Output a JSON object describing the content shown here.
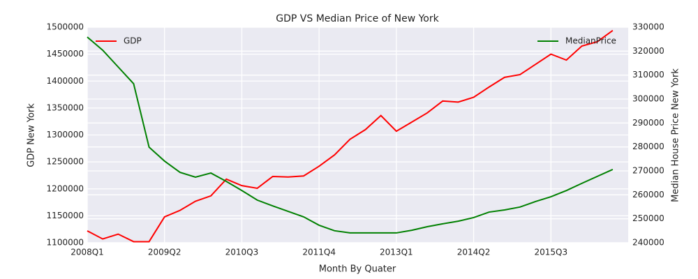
{
  "chart_data": {
    "type": "line",
    "title": "GDP VS Median Price of New York",
    "xlabel": "Month By Quater",
    "ylabel": "GDP New York",
    "y2label": "Median House Price New York",
    "categories": [
      "2008Q1",
      null,
      null,
      null,
      null,
      "2009Q2",
      null,
      null,
      null,
      null,
      "2010Q3",
      null,
      null,
      null,
      null,
      "2011Q4",
      null,
      null,
      null,
      null,
      "2013Q1",
      null,
      null,
      null,
      null,
      "2014Q2",
      null,
      null,
      null,
      null,
      "2015Q3",
      null,
      null,
      null,
      null
    ],
    "xlim": [
      0,
      35
    ],
    "ylim": [
      1100000,
      1500000
    ],
    "yticks": [
      1100000,
      1150000,
      1200000,
      1250000,
      1300000,
      1350000,
      1400000,
      1450000,
      1500000
    ],
    "y2lim": [
      240000,
      330000
    ],
    "y2ticks": [
      240000,
      250000,
      260000,
      270000,
      280000,
      290000,
      300000,
      310000,
      320000,
      330000
    ],
    "grid": true,
    "series": [
      {
        "name": "GDP",
        "color": "#ff0000",
        "legend": "upper left",
        "values": [
          1122000,
          1107000,
          1116000,
          1102000,
          1102000,
          1148000,
          1160000,
          1177000,
          1187000,
          1218000,
          1206000,
          1201000,
          1223000,
          1222000,
          1224000,
          1242000,
          1263000,
          1292000,
          1310000,
          1336000,
          1307000,
          1324000,
          1341000,
          1363000,
          1361000,
          1370000,
          1389000,
          1407000,
          1412000,
          1431000,
          1450000,
          1439000,
          1465000,
          1473000,
          1494000
        ]
      },
      {
        "name": "MedianPrice",
        "color": "#008000",
        "axis": "y2",
        "legend": "upper right",
        "values": [
          325900,
          320400,
          313400,
          306400,
          279900,
          274100,
          269400,
          267400,
          269100,
          265600,
          261800,
          257800,
          255400,
          253100,
          250800,
          247300,
          245000,
          244100,
          244100,
          244100,
          244100,
          245200,
          246700,
          247900,
          249000,
          250500,
          252800,
          253700,
          254900,
          257200,
          259200,
          261800,
          264800,
          267700,
          270600
        ]
      }
    ]
  }
}
